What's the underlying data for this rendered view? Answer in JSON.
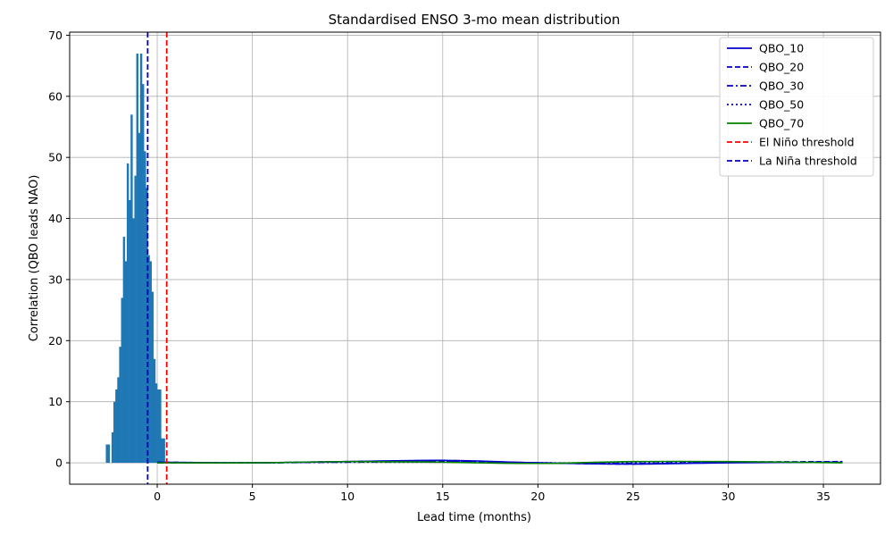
{
  "chart_data": {
    "type": "bar",
    "title": "Standardised ENSO 3-mo mean distribution",
    "xlabel": "Lead time (months)",
    "ylabel": "Correlation (QBO leads NAO)",
    "xlim": [
      -4.6,
      38.0
    ],
    "ylim": [
      -3.5,
      70.5
    ],
    "x_ticks": [
      0,
      5,
      10,
      15,
      20,
      25,
      30,
      35
    ],
    "y_ticks": [
      0,
      10,
      20,
      30,
      40,
      50,
      60,
      70
    ],
    "grid": true,
    "legend_position": "top-right",
    "histogram": {
      "color": "#1f77b4",
      "bin_width": 0.1,
      "bins": [
        {
          "x": -2.7,
          "count": 3
        },
        {
          "x": -2.6,
          "count": 3
        },
        {
          "x": -2.4,
          "count": 5
        },
        {
          "x": -2.3,
          "count": 10
        },
        {
          "x": -2.2,
          "count": 12
        },
        {
          "x": -2.1,
          "count": 14
        },
        {
          "x": -2.0,
          "count": 19
        },
        {
          "x": -1.9,
          "count": 27
        },
        {
          "x": -1.8,
          "count": 37
        },
        {
          "x": -1.7,
          "count": 33
        },
        {
          "x": -1.6,
          "count": 49
        },
        {
          "x": -1.5,
          "count": 43
        },
        {
          "x": -1.4,
          "count": 57
        },
        {
          "x": -1.3,
          "count": 40
        },
        {
          "x": -1.2,
          "count": 47
        },
        {
          "x": -1.1,
          "count": 67
        },
        {
          "x": -1.0,
          "count": 54
        },
        {
          "x": -0.9,
          "count": 67
        },
        {
          "x": -0.8,
          "count": 62
        },
        {
          "x": -0.7,
          "count": 51
        },
        {
          "x": -0.6,
          "count": 45
        },
        {
          "x": -0.5,
          "count": 34
        },
        {
          "x": -0.4,
          "count": 33
        },
        {
          "x": -0.3,
          "count": 28
        },
        {
          "x": -0.2,
          "count": 17
        },
        {
          "x": -0.1,
          "count": 13
        },
        {
          "x": 0.0,
          "count": 12
        },
        {
          "x": 0.1,
          "count": 12
        },
        {
          "x": 0.2,
          "count": 4
        },
        {
          "x": 0.3,
          "count": 4
        }
      ]
    },
    "series": [
      {
        "name": "QBO_10",
        "color": "#0000cc",
        "dash": "solid",
        "x": [
          0,
          5,
          10,
          15,
          20,
          25,
          30,
          36
        ],
        "y": [
          0.1,
          0.0,
          0.2,
          0.4,
          0.0,
          -0.2,
          0.0,
          0.1
        ]
      },
      {
        "name": "QBO_20",
        "color": "#0000cc",
        "dash": "dashed",
        "x": [
          0,
          5,
          10,
          15,
          20,
          25,
          30,
          36
        ],
        "y": [
          0.1,
          0.0,
          0.2,
          0.3,
          0.0,
          -0.2,
          0.1,
          0.2
        ]
      },
      {
        "name": "QBO_30",
        "color": "#0000cc",
        "dash": "dashdot",
        "x": [
          0,
          5,
          10,
          15,
          20,
          25,
          30,
          36
        ],
        "y": [
          0.0,
          0.0,
          0.1,
          0.2,
          0.0,
          -0.1,
          0.1,
          0.1
        ]
      },
      {
        "name": "QBO_50",
        "color": "#0000cc",
        "dash": "dotted",
        "x": [
          0,
          5,
          10,
          15,
          20,
          25,
          30,
          36
        ],
        "y": [
          0.0,
          0.0,
          0.1,
          0.1,
          0.0,
          0.0,
          0.1,
          0.1
        ]
      },
      {
        "name": "QBO_70",
        "color": "#008000",
        "dash": "solid",
        "x": [
          0,
          5,
          10,
          15,
          20,
          25,
          30,
          36
        ],
        "y": [
          0.0,
          0.0,
          0.2,
          0.1,
          -0.1,
          0.2,
          0.2,
          0.0
        ]
      }
    ],
    "thresholds": [
      {
        "name": "El Niño threshold",
        "x": 0.5,
        "color": "#ff0000",
        "dash": "dashed"
      },
      {
        "name": "La Niña threshold",
        "x": -0.5,
        "color": "#0000cc",
        "dash": "dashed"
      }
    ]
  }
}
